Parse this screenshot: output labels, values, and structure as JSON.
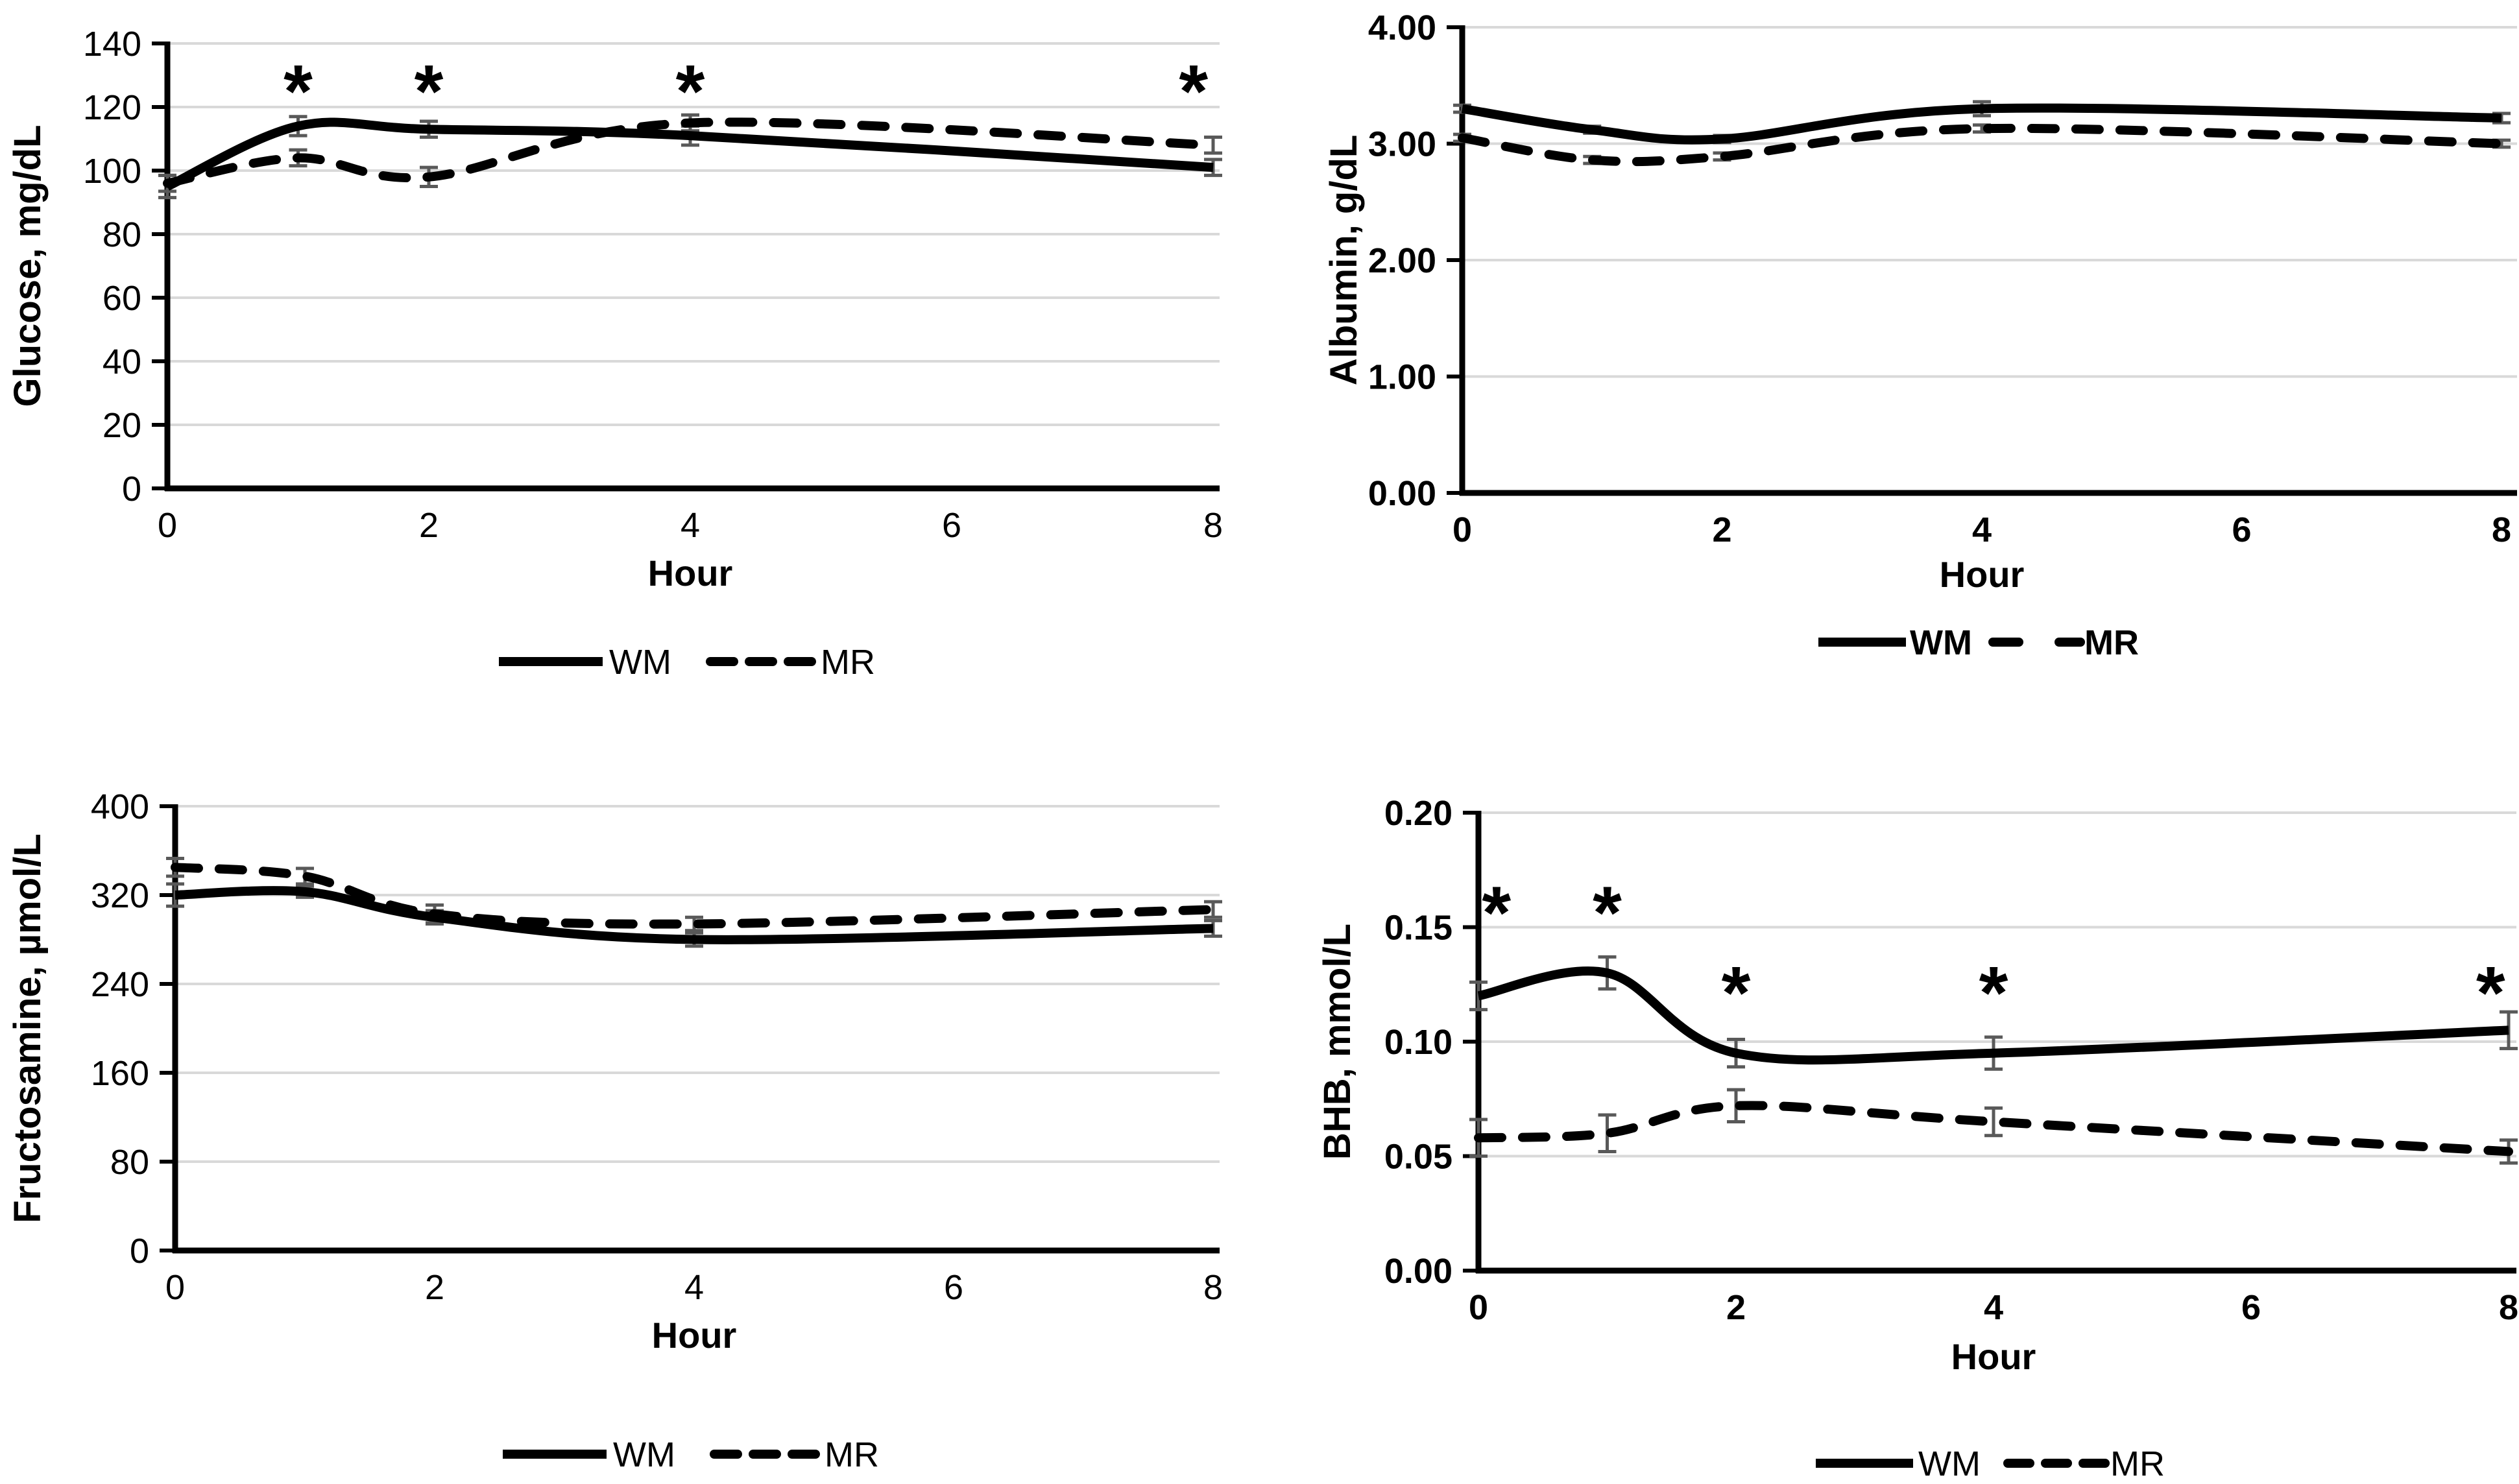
{
  "figure": {
    "description_texts": {
      "x_axis_label": "Hour",
      "series_1_label": "WM",
      "series_2_label": "MR",
      "significance_marker": "*"
    },
    "colors": {
      "line_color": "#000000",
      "error_bar_color": "#595959",
      "gridline_color": "#d9d9d9",
      "background": "#ffffff",
      "text_color": "#000000"
    }
  },
  "chart_data": [
    {
      "id": "glucose",
      "type": "line",
      "title": "",
      "ylabel": "Glucose, mg/dL",
      "xlabel": "Hour",
      "ylim": [
        0,
        140
      ],
      "ytick_values": [
        0,
        20,
        40,
        60,
        80,
        100,
        120,
        140
      ],
      "ytick_labels": [
        "0",
        "20",
        "40",
        "60",
        "80",
        "100",
        "120",
        "140"
      ],
      "xlim": [
        0,
        8
      ],
      "xtick_values": [
        0,
        2,
        4,
        6,
        8
      ],
      "xtick_labels": [
        "0",
        "2",
        "4",
        "6",
        "8"
      ],
      "x_hours": [
        0,
        1,
        2,
        4,
        8
      ],
      "series": [
        {
          "name": "WM",
          "style": "solid",
          "values": [
            95,
            114,
            113,
            111,
            101
          ],
          "errors": [
            3.5,
            3,
            2.5,
            3,
            2.5
          ]
        },
        {
          "name": "MR",
          "style": "dashed",
          "values": [
            96,
            104,
            98,
            115,
            108
          ],
          "errors": [
            2.5,
            2.5,
            3,
            2.5,
            2.5
          ]
        }
      ],
      "significance": {
        "marker": "*",
        "hours": [
          1,
          2,
          4,
          8
        ],
        "positions": [
          {
            "x": 1,
            "y": 129
          },
          {
            "x": 2,
            "y": 129
          },
          {
            "x": 4,
            "y": 129
          },
          {
            "x": 7.85,
            "y": 129
          }
        ]
      },
      "legend_entries": [
        "WM",
        "MR"
      ],
      "grid": true,
      "legend_position": "bottom"
    },
    {
      "id": "albumin",
      "type": "line",
      "title": "",
      "ylabel": "Albumin, g/dL",
      "xlabel": "Hour",
      "ylim": [
        0,
        4
      ],
      "ytick_values": [
        0,
        1,
        2,
        3,
        4
      ],
      "ytick_labels": [
        "0.00",
        "1.00",
        "2.00",
        "3.00",
        "4.00"
      ],
      "xlim": [
        0,
        8
      ],
      "xtick_values": [
        0,
        2,
        4,
        6,
        8
      ],
      "xtick_labels": [
        "0",
        "2",
        "4",
        "6",
        "8"
      ],
      "x_hours": [
        0,
        1,
        2,
        4,
        8
      ],
      "series": [
        {
          "name": "WM",
          "style": "solid",
          "values": [
            3.3,
            3.12,
            3.04,
            3.3,
            3.22
          ],
          "errors": [
            0.03,
            0.03,
            0.03,
            0.06,
            0.04
          ]
        },
        {
          "name": "MR",
          "style": "dashed",
          "values": [
            3.05,
            2.86,
            2.89,
            3.13,
            3.0
          ],
          "errors": [
            0.03,
            0.03,
            0.03,
            0.03,
            0.03
          ]
        }
      ],
      "significance": {
        "marker": "*",
        "hours": [],
        "positions": []
      },
      "legend_entries": [
        "WM",
        "MR"
      ],
      "grid": true,
      "legend_position": "bottom"
    },
    {
      "id": "fructosamine",
      "type": "line",
      "title": "",
      "ylabel": "Fructosamine, µmol/L",
      "xlabel": "Hour",
      "ylim": [
        0,
        400
      ],
      "ytick_values": [
        0,
        80,
        160,
        240,
        320,
        400
      ],
      "ytick_labels": [
        "0",
        "80",
        "160",
        "240",
        "320",
        "400"
      ],
      "xlim": [
        0,
        8
      ],
      "xtick_values": [
        0,
        2,
        4,
        6,
        8
      ],
      "xtick_labels": [
        "0",
        "2",
        "4",
        "6",
        "8"
      ],
      "x_hours": [
        0,
        1,
        2,
        4,
        8
      ],
      "series": [
        {
          "name": "WM",
          "style": "solid",
          "values": [
            320,
            323,
            300,
            280,
            290
          ],
          "errors": [
            10,
            5,
            6,
            6,
            7
          ]
        },
        {
          "name": "MR",
          "style": "dashed",
          "values": [
            345,
            337,
            303,
            294,
            307
          ],
          "errors": [
            8,
            7,
            8,
            6,
            7
          ]
        }
      ],
      "significance": {
        "marker": "*",
        "hours": [],
        "positions": []
      },
      "legend_entries": [
        "WM",
        "MR"
      ],
      "grid": true,
      "legend_position": "bottom"
    },
    {
      "id": "bhb",
      "type": "line",
      "title": "",
      "ylabel": "BHB, mmol/L",
      "xlabel": "Hour",
      "ylim": [
        0,
        0.2
      ],
      "ytick_values": [
        0,
        0.05,
        0.1,
        0.15,
        0.2
      ],
      "ytick_labels": [
        "0.00",
        "0.05",
        "0.10",
        "0.15",
        "0.20"
      ],
      "xlim": [
        0,
        8
      ],
      "xtick_values": [
        0,
        2,
        4,
        6,
        8
      ],
      "xtick_labels": [
        "0",
        "2",
        "4",
        "6",
        "8"
      ],
      "x_hours": [
        0,
        1,
        2,
        4,
        8
      ],
      "series": [
        {
          "name": "WM",
          "style": "solid",
          "values": [
            0.12,
            0.13,
            0.095,
            0.095,
            0.105
          ],
          "errors": [
            0.006,
            0.007,
            0.006,
            0.007,
            0.008
          ]
        },
        {
          "name": "MR",
          "style": "dashed",
          "values": [
            0.058,
            0.06,
            0.072,
            0.065,
            0.052
          ],
          "errors": [
            0.008,
            0.008,
            0.007,
            0.006,
            0.005
          ]
        }
      ],
      "significance": {
        "marker": "*",
        "hours": [
          0,
          1,
          2,
          4,
          8
        ],
        "positions": [
          {
            "x": 0.14,
            "y": 0.162
          },
          {
            "x": 1,
            "y": 0.162
          },
          {
            "x": 2,
            "y": 0.127
          },
          {
            "x": 4,
            "y": 0.127
          },
          {
            "x": 7.86,
            "y": 0.127
          }
        ]
      },
      "legend_entries": [
        "WM",
        "MR"
      ],
      "grid": true,
      "legend_position": "bottom"
    }
  ]
}
